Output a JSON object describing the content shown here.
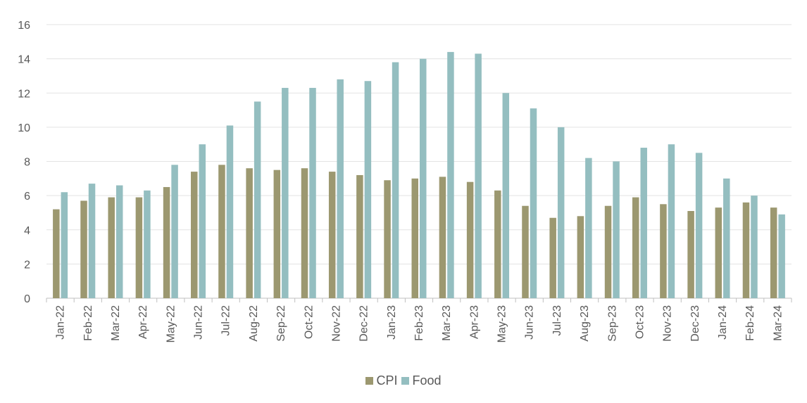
{
  "chart_data": {
    "type": "bar",
    "categories": [
      "Jan-22",
      "Feb-22",
      "Mar-22",
      "Apr-22",
      "May-22",
      "Jun-22",
      "Jul-22",
      "Aug-22",
      "Sep-22",
      "Oct-22",
      "Nov-22",
      "Dec-22",
      "Jan-23",
      "Feb-23",
      "Mar-23",
      "Apr-23",
      "May-23",
      "Jun-23",
      "Jul-23",
      "Aug-23",
      "Sep-23",
      "Oct-23",
      "Nov-23",
      "Dec-23",
      "Jan-24",
      "Feb-24",
      "Mar-24"
    ],
    "series": [
      {
        "name": "CPI",
        "color": "#9c9870",
        "values": [
          5.2,
          5.7,
          5.9,
          5.9,
          6.5,
          7.4,
          7.8,
          7.6,
          7.5,
          7.6,
          7.4,
          7.2,
          6.9,
          7.0,
          7.1,
          6.8,
          6.3,
          5.4,
          4.7,
          4.8,
          5.4,
          5.9,
          5.5,
          5.1,
          5.3,
          5.6,
          5.3
        ]
      },
      {
        "name": "Food",
        "color": "#94bec0",
        "values": [
          6.2,
          6.7,
          6.6,
          6.3,
          7.8,
          9.0,
          10.1,
          11.5,
          12.3,
          12.3,
          12.8,
          12.7,
          13.8,
          14.0,
          14.4,
          14.3,
          12.0,
          11.1,
          10.0,
          8.2,
          8.0,
          8.8,
          9.0,
          8.5,
          7.0,
          6.0,
          4.9
        ]
      }
    ],
    "ylim": [
      0,
      16
    ],
    "yticks": [
      0,
      2,
      4,
      6,
      8,
      10,
      12,
      14,
      16
    ],
    "grid": true,
    "legend_position": "bottom"
  }
}
